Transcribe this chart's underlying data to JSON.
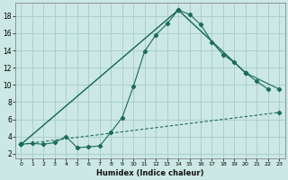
{
  "xlabel": "Humidex (Indice chaleur)",
  "background_color": "#cce8e4",
  "grid_color": "#aacfca",
  "line_color": "#1a6b5a",
  "xlim": [
    -0.5,
    23.5
  ],
  "ylim": [
    1.5,
    19.5
  ],
  "xtick_labels": [
    "0",
    "1",
    "2",
    "3",
    "4",
    "5",
    "6",
    "7",
    "8",
    "9",
    "10",
    "11",
    "12",
    "13",
    "14",
    "15",
    "16",
    "17",
    "18",
    "19",
    "20",
    "21",
    "22",
    "23"
  ],
  "ytick_values": [
    2,
    4,
    6,
    8,
    10,
    12,
    14,
    16,
    18
  ],
  "series1_x": [
    0,
    1,
    2,
    3,
    4,
    5,
    6,
    7,
    8,
    9,
    10,
    11,
    12,
    13,
    14,
    15,
    16,
    17,
    18,
    19,
    20,
    21,
    22
  ],
  "series1_y": [
    3.1,
    3.2,
    3.1,
    3.3,
    4.0,
    2.7,
    2.8,
    2.9,
    4.5,
    6.2,
    9.8,
    13.9,
    15.8,
    17.1,
    18.7,
    18.2,
    17.0,
    15.0,
    13.5,
    12.6,
    11.4,
    10.4,
    9.5
  ],
  "series2_x": [
    0,
    14,
    20,
    23
  ],
  "series2_y": [
    3.1,
    18.7,
    11.4,
    9.5
  ],
  "series3_x": [
    0,
    14,
    20
  ],
  "series3_y": [
    3.1,
    18.7,
    11.4
  ],
  "series4_x": [
    0,
    23
  ],
  "series4_y": [
    3.1,
    6.8
  ]
}
